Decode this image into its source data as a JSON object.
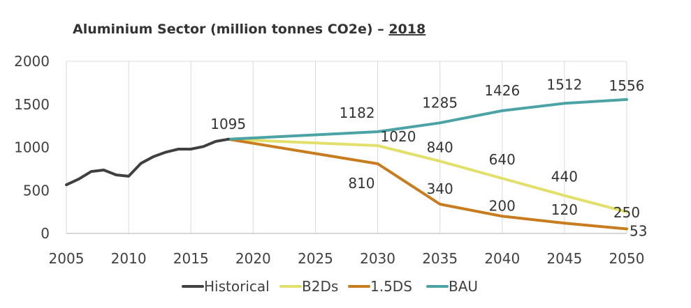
{
  "chart_data": {
    "type": "line",
    "title": "Aluminium Sector (million tonnes CO2e) – ",
    "title_year": "2018",
    "xlabel": "",
    "ylabel": "",
    "xlim": [
      2005,
      2050
    ],
    "ylim": [
      0,
      2000
    ],
    "x_ticks": [
      2005,
      2010,
      2015,
      2020,
      2025,
      2030,
      2035,
      2040,
      2045,
      2050
    ],
    "y_ticks": [
      0,
      500,
      1000,
      1500,
      2000
    ],
    "grid": "vertical",
    "legend_position": "bottom",
    "series": [
      {
        "name": "Historical",
        "color": "#404040",
        "x": [
          2005,
          2006,
          2007,
          2008,
          2009,
          2010,
          2011,
          2012,
          2013,
          2014,
          2015,
          2016,
          2017,
          2018
        ],
        "values": [
          565,
          632,
          720,
          737,
          680,
          665,
          815,
          893,
          945,
          980,
          980,
          1010,
          1070,
          1095
        ]
      },
      {
        "name": "B2Ds",
        "color": "#e2e06b",
        "x": [
          2018,
          2030,
          2035,
          2040,
          2045,
          2050
        ],
        "values": [
          1095,
          1020,
          840,
          640,
          440,
          250
        ]
      },
      {
        "name": "1.5DS",
        "color": "#c87c1e",
        "x": [
          2018,
          2030,
          2035,
          2040,
          2045,
          2050
        ],
        "values": [
          1095,
          810,
          340,
          200,
          120,
          53
        ]
      },
      {
        "name": "BAU",
        "color": "#4ca3a6",
        "x": [
          2018,
          2030,
          2035,
          2040,
          2045,
          2050
        ],
        "values": [
          1095,
          1182,
          1285,
          1426,
          1512,
          1556
        ]
      }
    ],
    "data_labels": [
      {
        "text": "1095",
        "x": 2018,
        "y": 1095,
        "anchor": "middle",
        "dy": -15
      },
      {
        "text": "1182",
        "x": 2030,
        "y": 1182,
        "anchor": "end",
        "dy": -20
      },
      {
        "text": "1285",
        "x": 2035,
        "y": 1285,
        "anchor": "middle",
        "dy": -22
      },
      {
        "text": "1426",
        "x": 2040,
        "y": 1426,
        "anchor": "middle",
        "dy": -22
      },
      {
        "text": "1512",
        "x": 2045,
        "y": 1512,
        "anchor": "middle",
        "dy": -20
      },
      {
        "text": "1556",
        "x": 2050,
        "y": 1556,
        "anchor": "middle",
        "dy": -13
      },
      {
        "text": "1020",
        "x": 2030,
        "y": 1020,
        "anchor": "start",
        "dy": -6
      },
      {
        "text": "840",
        "x": 2035,
        "y": 840,
        "anchor": "middle",
        "dy": -13
      },
      {
        "text": "640",
        "x": 2040,
        "y": 640,
        "anchor": "middle",
        "dy": -20
      },
      {
        "text": "440",
        "x": 2045,
        "y": 440,
        "anchor": "middle",
        "dy": -20
      },
      {
        "text": "250",
        "x": 2050,
        "y": 250,
        "anchor": "middle",
        "dy": 8
      },
      {
        "text": "810",
        "x": 2030,
        "y": 810,
        "anchor": "end",
        "dy": 35
      },
      {
        "text": "340",
        "x": 2035,
        "y": 340,
        "anchor": "middle",
        "dy": -15
      },
      {
        "text": "200",
        "x": 2040,
        "y": 200,
        "anchor": "middle",
        "dy": -8
      },
      {
        "text": "120",
        "x": 2045,
        "y": 120,
        "anchor": "middle",
        "dy": -12
      },
      {
        "text": "53",
        "x": 2050,
        "y": 53,
        "anchor": "start",
        "dy": 10
      }
    ]
  }
}
